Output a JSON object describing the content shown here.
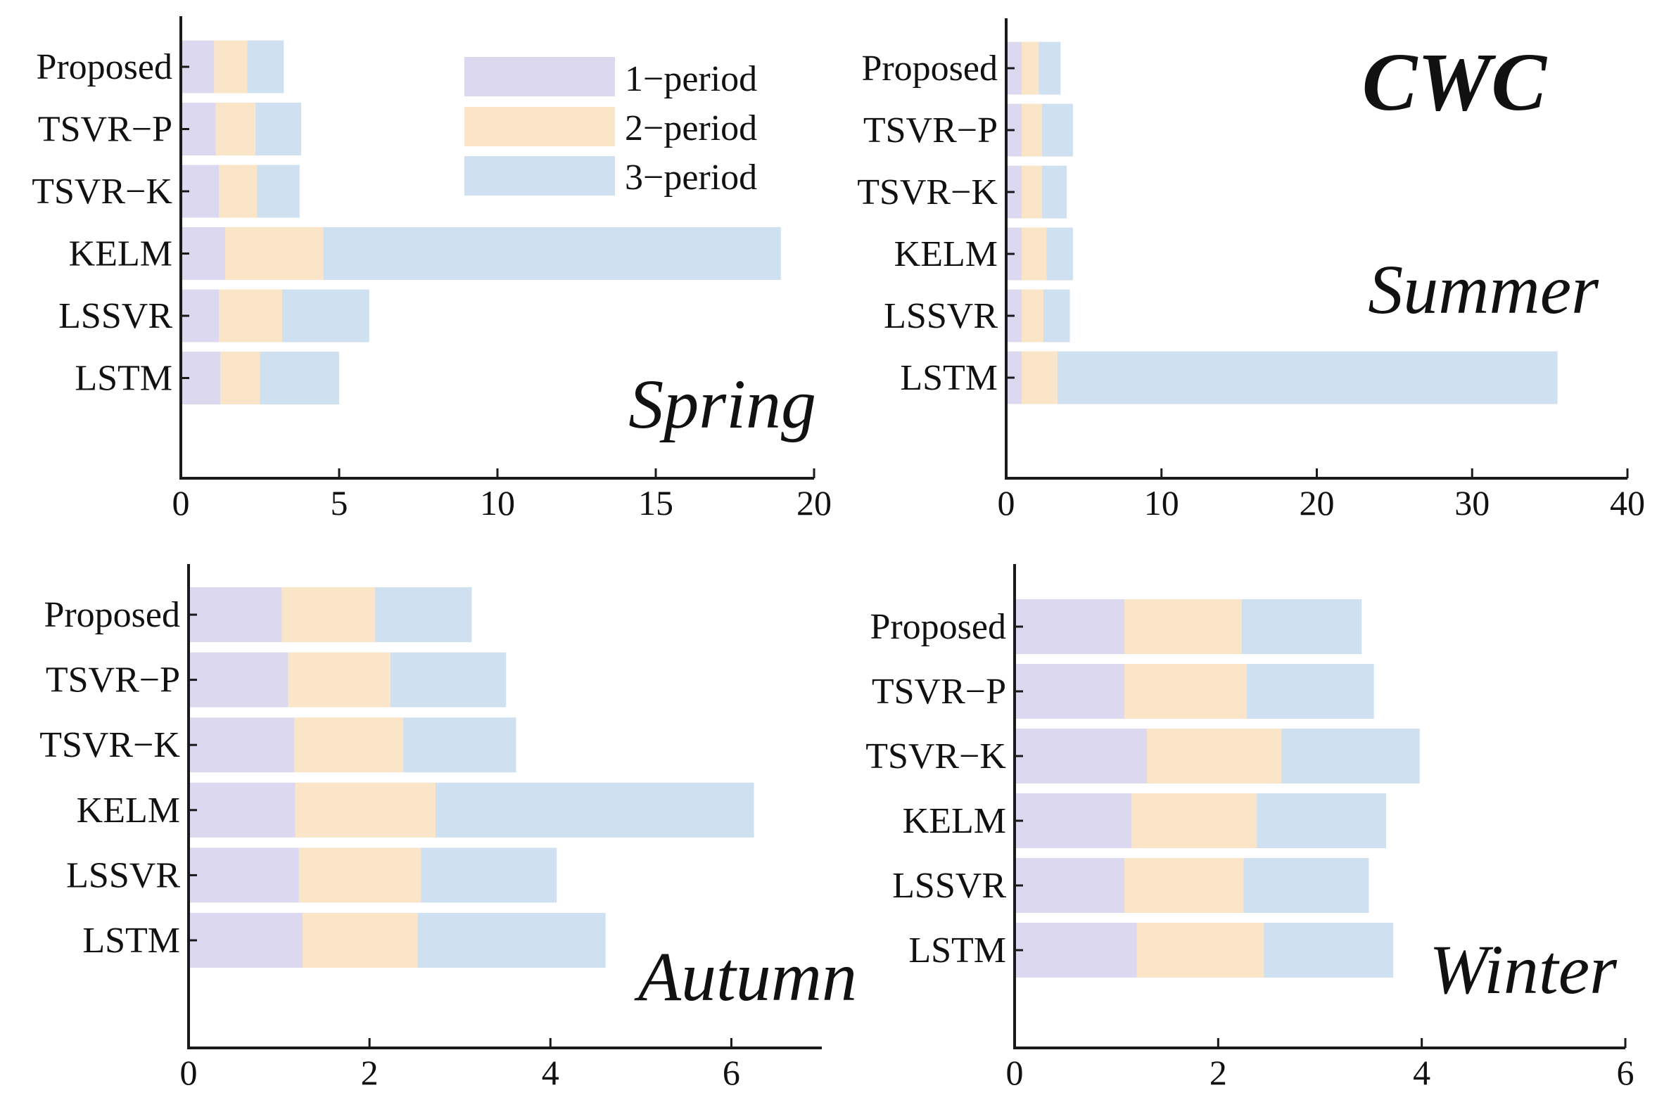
{
  "figure_title": "CWC",
  "legend": [
    "1−period",
    "2−period",
    "3−period"
  ],
  "colors": {
    "p1": "#dcd8ef",
    "p2": "#fbe5c8",
    "p3": "#cfe1f1"
  },
  "chart_data": [
    {
      "type": "bar",
      "orientation": "horizontal",
      "stacked": true,
      "title": "Spring",
      "categories": [
        "Proposed",
        "TSVR−P",
        "TSVR−K",
        "KELM",
        "LSSVR",
        "LSTM"
      ],
      "series": [
        {
          "name": "1−period",
          "values": [
            1.05,
            1.1,
            1.2,
            1.4,
            1.2,
            1.25
          ]
        },
        {
          "name": "2−period",
          "values": [
            1.05,
            1.25,
            1.2,
            3.1,
            2.0,
            1.25
          ]
        },
        {
          "name": "3−period",
          "values": [
            1.15,
            1.45,
            1.35,
            14.45,
            2.75,
            2.5
          ]
        }
      ],
      "xlim": [
        0,
        20
      ],
      "xticks": [
        "0",
        "5",
        "10",
        "15",
        "20"
      ],
      "xlabel": "",
      "ylabel": ""
    },
    {
      "type": "bar",
      "orientation": "horizontal",
      "stacked": true,
      "title": "Summer",
      "categories": [
        "Proposed",
        "TSVR−P",
        "TSVR−K",
        "KELM",
        "LSSVR",
        "LSTM"
      ],
      "series": [
        {
          "name": "1−period",
          "values": [
            1.0,
            1.0,
            1.0,
            1.0,
            1.0,
            1.0
          ]
        },
        {
          "name": "2−period",
          "values": [
            1.1,
            1.3,
            1.3,
            1.6,
            1.4,
            2.3
          ]
        },
        {
          "name": "3−period",
          "values": [
            1.4,
            2.0,
            1.6,
            1.7,
            1.7,
            32.2
          ]
        }
      ],
      "xlim": [
        0,
        40
      ],
      "xticks": [
        "0",
        "10",
        "20",
        "30",
        "40"
      ],
      "xlabel": "",
      "ylabel": ""
    },
    {
      "type": "bar",
      "orientation": "horizontal",
      "stacked": true,
      "title": "Autumn",
      "categories": [
        "Proposed",
        "TSVR−P",
        "TSVR−K",
        "KELM",
        "LSSVR",
        "LSTM"
      ],
      "series": [
        {
          "name": "1−period",
          "values": [
            1.03,
            1.1,
            1.17,
            1.18,
            1.22,
            1.26
          ]
        },
        {
          "name": "2−period",
          "values": [
            1.03,
            1.13,
            1.2,
            1.55,
            1.35,
            1.27
          ]
        },
        {
          "name": "3−period",
          "values": [
            1.07,
            1.28,
            1.25,
            3.52,
            1.5,
            2.08
          ]
        }
      ],
      "xlim": [
        0,
        7
      ],
      "xticks": [
        "0",
        "2",
        "4",
        "6"
      ],
      "xlabel": "",
      "ylabel": ""
    },
    {
      "type": "bar",
      "orientation": "horizontal",
      "stacked": true,
      "title": "Winter",
      "categories": [
        "Proposed",
        "TSVR−P",
        "TSVR−K",
        "KELM",
        "LSSVR",
        "LSTM"
      ],
      "series": [
        {
          "name": "1−period",
          "values": [
            1.08,
            1.08,
            1.3,
            1.15,
            1.08,
            1.2
          ]
        },
        {
          "name": "2−period",
          "values": [
            1.15,
            1.2,
            1.32,
            1.23,
            1.17,
            1.25
          ]
        },
        {
          "name": "3−period",
          "values": [
            1.18,
            1.25,
            1.36,
            1.27,
            1.23,
            1.27
          ]
        }
      ],
      "xlim": [
        0,
        6
      ],
      "xticks": [
        "0",
        "2",
        "4",
        "6"
      ],
      "xlabel": "",
      "ylabel": ""
    }
  ]
}
